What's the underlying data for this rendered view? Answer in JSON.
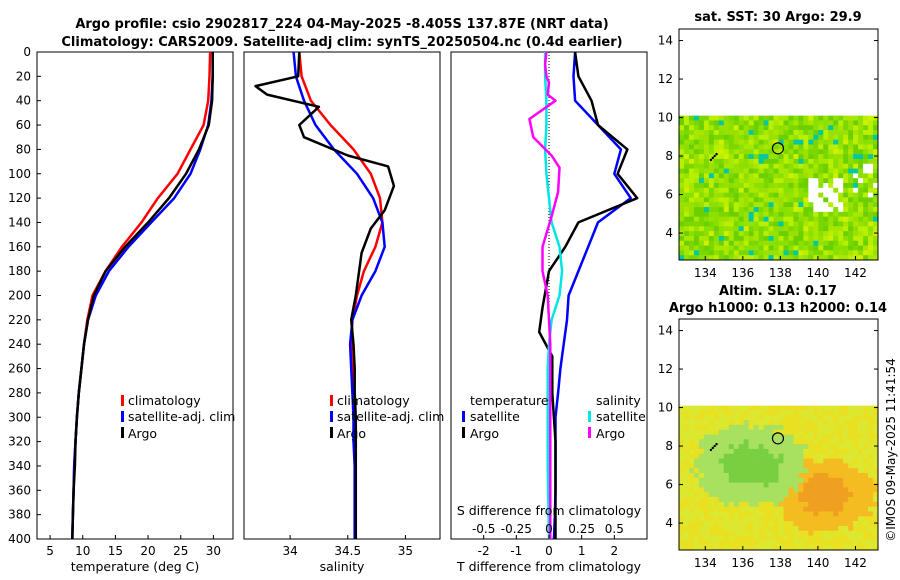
{
  "header": {
    "title_line1": "Argo profile: csio 2902817_224 04-May-2025 -8.405S 137.87E (NRT data)",
    "title_line2": "Climatology: CARS2009. Satellite-adj clim: synTS_20250504.nc (0.4d earlier)"
  },
  "watermark": "©IMOS 09-May-2025 11:41:54",
  "colors": {
    "climatology": "#ff0000",
    "satellite": "#0000ff",
    "argo": "#000000",
    "s_satellite": "#00e5e5",
    "s_argo": "#ff00ff"
  },
  "chart_data": [
    {
      "id": "temperature",
      "type": "line",
      "xlabel": "temperature (deg C)",
      "ylabel": "",
      "xlim": [
        3,
        33
      ],
      "ylim": [
        400,
        0
      ],
      "xticks": [
        "5",
        "10",
        "15",
        "20",
        "25",
        "30"
      ],
      "xtick_values": [
        5,
        10,
        15,
        20,
        25,
        30
      ],
      "yticks": [
        "0",
        "20",
        "40",
        "60",
        "80",
        "100",
        "120",
        "140",
        "160",
        "180",
        "200",
        "220",
        "240",
        "260",
        "280",
        "300",
        "320",
        "340",
        "360",
        "380",
        "400"
      ],
      "ytick_values": [
        0,
        20,
        40,
        60,
        80,
        100,
        120,
        140,
        160,
        180,
        200,
        220,
        240,
        260,
        280,
        300,
        320,
        340,
        360,
        380,
        400
      ],
      "legend": [
        "climatology",
        "satellite-adj. clim",
        "Argo"
      ],
      "series": [
        {
          "name": "climatology",
          "color": "#ff0000",
          "points": [
            [
              29.5,
              0
            ],
            [
              29.4,
              20
            ],
            [
              29.2,
              40
            ],
            [
              28.5,
              60
            ],
            [
              26.5,
              80
            ],
            [
              24.5,
              100
            ],
            [
              21.5,
              120
            ],
            [
              19.0,
              140
            ],
            [
              16.0,
              160
            ],
            [
              13.5,
              180
            ],
            [
              11.5,
              200
            ],
            [
              10.7,
              220
            ],
            [
              10.2,
              240
            ],
            [
              9.8,
              260
            ],
            [
              9.4,
              280
            ],
            [
              9.1,
              300
            ],
            [
              8.9,
              320
            ],
            [
              8.7,
              340
            ],
            [
              8.6,
              360
            ],
            [
              8.5,
              380
            ],
            [
              8.4,
              400
            ]
          ]
        },
        {
          "name": "satellite-adj. clim",
          "color": "#0000ff",
          "points": [
            [
              29.9,
              0
            ],
            [
              29.9,
              20
            ],
            [
              29.7,
              40
            ],
            [
              29.2,
              60
            ],
            [
              28.0,
              80
            ],
            [
              26.5,
              100
            ],
            [
              24.0,
              120
            ],
            [
              20.5,
              140
            ],
            [
              17.0,
              160
            ],
            [
              14.0,
              180
            ],
            [
              12.0,
              200
            ],
            [
              10.8,
              220
            ],
            [
              10.2,
              240
            ],
            [
              9.8,
              260
            ],
            [
              9.4,
              280
            ],
            [
              9.1,
              300
            ],
            [
              8.9,
              320
            ],
            [
              8.7,
              340
            ],
            [
              8.6,
              360
            ],
            [
              8.5,
              380
            ],
            [
              8.4,
              400
            ]
          ]
        },
        {
          "name": "Argo",
          "color": "#000000",
          "points": [
            [
              29.9,
              0
            ],
            [
              29.9,
              20
            ],
            [
              29.8,
              40
            ],
            [
              29.3,
              60
            ],
            [
              27.8,
              80
            ],
            [
              25.8,
              100
            ],
            [
              23.2,
              120
            ],
            [
              20.0,
              140
            ],
            [
              16.5,
              160
            ],
            [
              13.5,
              180
            ],
            [
              11.7,
              200
            ],
            [
              10.8,
              220
            ],
            [
              10.2,
              240
            ],
            [
              9.8,
              260
            ],
            [
              9.4,
              280
            ],
            [
              9.1,
              300
            ],
            [
              8.9,
              320
            ],
            [
              8.8,
              340
            ],
            [
              8.6,
              360
            ],
            [
              8.5,
              380
            ],
            [
              8.4,
              400
            ]
          ]
        }
      ]
    },
    {
      "id": "salinity",
      "type": "line",
      "xlabel": "salinity",
      "ylabel": "",
      "xlim": [
        33.6,
        35.3
      ],
      "ylim": [
        400,
        0
      ],
      "xticks": [
        "34",
        "34.5",
        "35"
      ],
      "xtick_values": [
        34,
        34.5,
        35
      ],
      "legend": [
        "climatology",
        "satellite-adj. clim",
        "Argo"
      ],
      "series": [
        {
          "name": "climatology",
          "color": "#ff0000",
          "points": [
            [
              34.08,
              0
            ],
            [
              34.1,
              20
            ],
            [
              34.18,
              40
            ],
            [
              34.35,
              60
            ],
            [
              34.55,
              80
            ],
            [
              34.7,
              100
            ],
            [
              34.78,
              120
            ],
            [
              34.8,
              140
            ],
            [
              34.74,
              160
            ],
            [
              34.64,
              180
            ],
            [
              34.58,
              200
            ],
            [
              34.54,
              220
            ],
            [
              34.53,
              240
            ],
            [
              34.54,
              260
            ],
            [
              34.55,
              280
            ],
            [
              34.56,
              300
            ],
            [
              34.56,
              320
            ],
            [
              34.56,
              340
            ],
            [
              34.56,
              360
            ],
            [
              34.56,
              380
            ],
            [
              34.56,
              400
            ]
          ]
        },
        {
          "name": "satellite-adj. clim",
          "color": "#0000ff",
          "points": [
            [
              34.03,
              0
            ],
            [
              34.05,
              20
            ],
            [
              34.12,
              40
            ],
            [
              34.22,
              60
            ],
            [
              34.38,
              80
            ],
            [
              34.58,
              100
            ],
            [
              34.72,
              120
            ],
            [
              34.8,
              140
            ],
            [
              34.82,
              160
            ],
            [
              34.74,
              180
            ],
            [
              34.62,
              200
            ],
            [
              34.54,
              220
            ],
            [
              34.52,
              240
            ],
            [
              34.53,
              260
            ],
            [
              34.54,
              280
            ],
            [
              34.55,
              300
            ],
            [
              34.55,
              320
            ],
            [
              34.56,
              340
            ],
            [
              34.56,
              360
            ],
            [
              34.56,
              380
            ],
            [
              34.56,
              400
            ]
          ]
        },
        {
          "name": "Argo",
          "color": "#000000",
          "points": [
            [
              34.08,
              0
            ],
            [
              34.07,
              20
            ],
            [
              33.7,
              28
            ],
            [
              33.8,
              35
            ],
            [
              34.25,
              45
            ],
            [
              34.08,
              60
            ],
            [
              34.12,
              70
            ],
            [
              34.5,
              85
            ],
            [
              34.85,
              94
            ],
            [
              34.9,
              110
            ],
            [
              34.82,
              130
            ],
            [
              34.7,
              145
            ],
            [
              34.62,
              165
            ],
            [
              34.57,
              200
            ],
            [
              34.53,
              220
            ],
            [
              34.55,
              240
            ],
            [
              34.56,
              260
            ],
            [
              34.56,
              280
            ],
            [
              34.57,
              300
            ],
            [
              34.57,
              320
            ],
            [
              34.57,
              340
            ],
            [
              34.57,
              360
            ],
            [
              34.57,
              380
            ],
            [
              34.57,
              400
            ]
          ]
        }
      ]
    },
    {
      "id": "differences",
      "type": "line",
      "xlabel": "T difference from climatology",
      "x2label": "S difference from climatology",
      "xlim": [
        -3,
        3
      ],
      "x2lim": [
        -0.75,
        0.75
      ],
      "ylim": [
        400,
        0
      ],
      "xticks": [
        "-2",
        "-1",
        "0",
        "1",
        "2"
      ],
      "xtick_values": [
        -2,
        -1,
        0,
        1,
        2
      ],
      "x2ticks": [
        "-0.5",
        "-0.25",
        "0",
        "0.25",
        "0.5"
      ],
      "x2tick_values": [
        -0.5,
        -0.25,
        0,
        0.25,
        0.5
      ],
      "legend_temperature_title": "temperature",
      "legend_salinity_title": "salinity",
      "legend_temperature": [
        "satellite",
        "Argo"
      ],
      "legend_salinity": [
        "satellite",
        "Argo"
      ],
      "series": [
        {
          "name": "T satellite",
          "color": "#0000ff",
          "axis": "T",
          "points": [
            [
              0.8,
              0
            ],
            [
              0.75,
              20
            ],
            [
              0.8,
              40
            ],
            [
              1.5,
              60
            ],
            [
              2.2,
              80
            ],
            [
              2.0,
              100
            ],
            [
              2.5,
              120
            ],
            [
              1.5,
              140
            ],
            [
              1.2,
              160
            ],
            [
              0.9,
              180
            ],
            [
              0.6,
              200
            ],
            [
              0.55,
              220
            ],
            [
              0.45,
              240
            ],
            [
              0.35,
              260
            ],
            [
              0.28,
              280
            ],
            [
              0.2,
              300
            ],
            [
              0.2,
              320
            ],
            [
              0.2,
              340
            ],
            [
              0.2,
              360
            ],
            [
              0.18,
              380
            ],
            [
              0.15,
              400
            ]
          ]
        },
        {
          "name": "T Argo",
          "color": "#000000",
          "axis": "T",
          "points": [
            [
              0.8,
              0
            ],
            [
              0.9,
              20
            ],
            [
              1.3,
              40
            ],
            [
              1.5,
              60
            ],
            [
              2.4,
              80
            ],
            [
              2.1,
              100
            ],
            [
              2.7,
              120
            ],
            [
              0.9,
              140
            ],
            [
              0.5,
              160
            ],
            [
              0.0,
              180
            ],
            [
              -0.2,
              210
            ],
            [
              -0.3,
              230
            ],
            [
              0.1,
              250
            ],
            [
              0.1,
              280
            ],
            [
              0.2,
              320
            ],
            [
              0.2,
              360
            ],
            [
              0.2,
              400
            ]
          ]
        },
        {
          "name": "S satellite",
          "color": "#00e5e5",
          "axis": "S",
          "points": [
            [
              -0.03,
              0
            ],
            [
              -0.03,
              20
            ],
            [
              -0.02,
              40
            ],
            [
              -0.02,
              60
            ],
            [
              -0.03,
              80
            ],
            [
              -0.02,
              100
            ],
            [
              0.0,
              120
            ],
            [
              0.02,
              140
            ],
            [
              0.08,
              160
            ],
            [
              0.1,
              180
            ],
            [
              0.08,
              200
            ],
            [
              0.02,
              220
            ],
            [
              0.0,
              240
            ],
            [
              -0.01,
              260
            ],
            [
              -0.01,
              300
            ],
            [
              -0.01,
              340
            ],
            [
              0.0,
              400
            ]
          ]
        },
        {
          "name": "S Argo",
          "color": "#ff00ff",
          "axis": "S",
          "points": [
            [
              -0.02,
              0
            ],
            [
              -0.03,
              10
            ],
            [
              -0.02,
              20
            ],
            [
              0.0,
              25
            ],
            [
              -0.01,
              35
            ],
            [
              0.05,
              40
            ],
            [
              -0.15,
              55
            ],
            [
              -0.12,
              70
            ],
            [
              0.02,
              85
            ],
            [
              0.08,
              95
            ],
            [
              0.07,
              115
            ],
            [
              0.02,
              135
            ],
            [
              -0.05,
              160
            ],
            [
              -0.05,
              180
            ],
            [
              -0.01,
              200
            ],
            [
              0.0,
              220
            ],
            [
              0.01,
              240
            ],
            [
              0.01,
              280
            ],
            [
              0.01,
              320
            ],
            [
              0.01,
              360
            ],
            [
              0.01,
              400
            ]
          ]
        }
      ]
    },
    {
      "id": "sst-map",
      "type": "heatmap",
      "title": "sat. SST: 30 Argo: 29.9",
      "xlim": [
        132.6,
        143.2
      ],
      "ylim": [
        2.6,
        14.6
      ],
      "xticks": [
        "134",
        "136",
        "138",
        "140",
        "142"
      ],
      "xtick_values": [
        134,
        136,
        138,
        140,
        142
      ],
      "yticks": [
        "4",
        "6",
        "8",
        "10",
        "12",
        "14"
      ],
      "ytick_values": [
        4,
        6,
        8,
        10,
        12,
        14
      ],
      "data_top_lat": 10.1,
      "marker": [
        137.87,
        8.4
      ]
    },
    {
      "id": "sla-map",
      "type": "heatmap",
      "title_line1": "Altim. SLA: 0.17",
      "title_line2": "Argo h1000: 0.13 h2000: 0.14",
      "xlim": [
        132.6,
        143.2
      ],
      "ylim": [
        2.6,
        14.6
      ],
      "xticks": [
        "134",
        "136",
        "138",
        "140",
        "142"
      ],
      "xtick_values": [
        134,
        136,
        138,
        140,
        142
      ],
      "yticks": [
        "4",
        "6",
        "8",
        "10",
        "12",
        "14"
      ],
      "ytick_values": [
        4,
        6,
        8,
        10,
        12,
        14
      ],
      "data_top_lat": 10.1,
      "marker": [
        137.87,
        8.4
      ]
    }
  ]
}
